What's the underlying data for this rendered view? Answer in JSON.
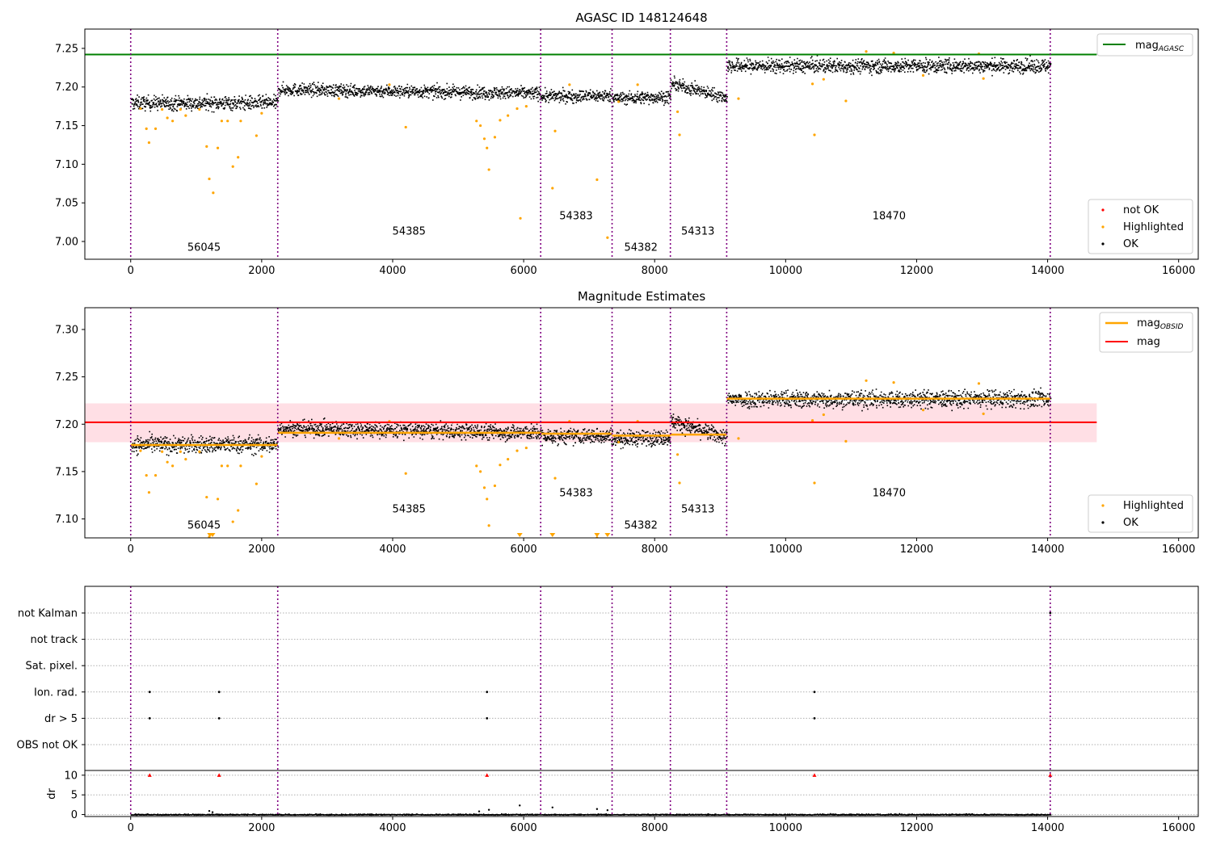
{
  "chart_data": [
    {
      "type": "scatter",
      "title": "AGASC ID 148124648",
      "xlim": [
        -700,
        16300
      ],
      "ylim": [
        6.977,
        7.275
      ],
      "xticks": [
        0,
        2000,
        4000,
        6000,
        8000,
        10000,
        12000,
        14000,
        16000
      ],
      "yticks": [
        7.0,
        7.05,
        7.1,
        7.15,
        7.2,
        7.25
      ],
      "ytick_labels": [
        "7.00",
        "7.05",
        "7.10",
        "7.15",
        "7.20",
        "7.25"
      ],
      "obsid_boundaries": [
        0,
        2245,
        6260,
        7350,
        8240,
        9100,
        14040
      ],
      "obsid_labels": [
        {
          "text": "56045",
          "x": 1120,
          "y": 6.988
        },
        {
          "text": "54385",
          "x": 4250,
          "y": 7.009
        },
        {
          "text": "54383",
          "x": 6800,
          "y": 7.029
        },
        {
          "text": "54382",
          "x": 7790,
          "y": 6.988
        },
        {
          "text": "54313",
          "x": 8660,
          "y": 7.009
        },
        {
          "text": "18470",
          "x": 11580,
          "y": 7.029
        }
      ],
      "agasc_line": {
        "name": "mag_AGASC",
        "value": 7.242,
        "x_range": [
          -700,
          14750
        ]
      },
      "ok_segments": [
        {
          "x": [
            0,
            2245
          ],
          "mean": 7.18,
          "slope": 0.0,
          "spread": 0.0045
        },
        {
          "x": [
            2245,
            6260
          ],
          "mean": 7.195,
          "slope": -0.005,
          "spread": 0.004
        },
        {
          "x": [
            6260,
            7350
          ],
          "mean": 7.189,
          "slope": 0.001,
          "spread": 0.004
        },
        {
          "x": [
            7350,
            8240
          ],
          "mean": 7.187,
          "slope": 0.002,
          "spread": 0.004
        },
        {
          "x": [
            8240,
            9100
          ],
          "mean": 7.196,
          "slope": -0.018,
          "spread": 0.004
        },
        {
          "x": [
            9100,
            14040
          ],
          "mean": 7.228,
          "slope": 0.0,
          "spread": 0.0045
        }
      ],
      "highlighted_points": {
        "x": [
          150,
          240,
          280,
          380,
          480,
          560,
          640,
          760,
          840,
          1050,
          1160,
          1200,
          1260,
          1330,
          1390,
          1480,
          1560,
          1640,
          1680,
          1920,
          2000,
          3180,
          3950,
          4200,
          5280,
          5340,
          5400,
          5440,
          5470,
          5560,
          5640,
          5760,
          5900,
          5950,
          6040,
          6440,
          6480,
          6700,
          7120,
          7280,
          7450,
          7740,
          8350,
          8380,
          9280,
          10410,
          10440,
          10580,
          10920,
          11230,
          11650,
          12100,
          12950,
          13020
        ],
        "y": [
          7.172,
          7.146,
          7.128,
          7.146,
          7.171,
          7.16,
          7.156,
          7.171,
          7.163,
          7.171,
          7.123,
          7.081,
          7.063,
          7.121,
          7.156,
          7.156,
          7.097,
          7.109,
          7.156,
          7.137,
          7.166,
          7.185,
          7.203,
          7.148,
          7.156,
          7.15,
          7.133,
          7.121,
          7.093,
          7.135,
          7.157,
          7.163,
          7.172,
          7.03,
          7.175,
          7.069,
          7.143,
          7.203,
          7.08,
          7.005,
          7.181,
          7.203,
          7.168,
          7.138,
          7.185,
          7.204,
          7.138,
          7.21,
          7.182,
          7.246,
          7.244,
          7.215,
          7.243,
          7.211
        ]
      },
      "legend_top": {
        "location": "upper right",
        "entries": [
          "mag_AGASC"
        ]
      },
      "legend_bottom": {
        "location": "lower right",
        "entries": [
          "not OK",
          "Highlighted",
          "OK"
        ]
      }
    },
    {
      "type": "scatter",
      "title": "Magnitude Estimates",
      "xlim": [
        -700,
        16300
      ],
      "ylim": [
        7.08,
        7.323
      ],
      "xticks": [
        0,
        2000,
        4000,
        6000,
        8000,
        10000,
        12000,
        14000,
        16000
      ],
      "yticks": [
        7.1,
        7.15,
        7.2,
        7.25,
        7.3
      ],
      "ytick_labels": [
        "7.10",
        "7.15",
        "7.20",
        "7.25",
        "7.30"
      ],
      "obsid_boundaries": [
        0,
        2245,
        6260,
        7350,
        8240,
        9100,
        14040
      ],
      "obsid_labels": [
        {
          "text": "56045",
          "x": 1120,
          "y": 7.09
        },
        {
          "text": "54385",
          "x": 4250,
          "y": 7.107
        },
        {
          "text": "54383",
          "x": 6800,
          "y": 7.124
        },
        {
          "text": "54382",
          "x": 7790,
          "y": 7.09
        },
        {
          "text": "54313",
          "x": 8660,
          "y": 7.107
        },
        {
          "text": "18470",
          "x": 11580,
          "y": 7.124
        }
      ],
      "mag_line": {
        "name": "mag",
        "value": 7.202,
        "band": [
          7.181,
          7.222
        ],
        "x_range": [
          -700,
          14750
        ]
      },
      "obsid_mag_levels": [
        {
          "x": [
            0,
            2245
          ],
          "mag": 7.178
        },
        {
          "x": [
            2245,
            6260
          ],
          "mag": 7.191
        },
        {
          "x": [
            6260,
            7350
          ],
          "mag": 7.19
        },
        {
          "x": [
            7350,
            8240
          ],
          "mag": 7.188
        },
        {
          "x": [
            8240,
            9100
          ],
          "mag": 7.189
        },
        {
          "x": [
            9100,
            14040
          ],
          "mag": 7.227
        }
      ],
      "out_of_range_markers_x": [
        1210,
        1250,
        5940,
        6440,
        7120,
        7280
      ],
      "legend_top": {
        "location": "upper right",
        "entries": [
          "mag_OBSID",
          "mag"
        ]
      },
      "legend_bottom": {
        "location": "lower right",
        "entries": [
          "Highlighted",
          "OK"
        ]
      }
    },
    {
      "type": "scatter",
      "title": "",
      "xlim": [
        -700,
        16300
      ],
      "flag_rows": [
        "not Kalman",
        "not track",
        "Sat. pixel.",
        "Ion. rad.",
        "dr > 5",
        "OBS not OK"
      ],
      "flag_points": {
        "not Kalman": [
          14040
        ],
        "not track": [],
        "Sat. pixel.": [],
        "Ion. rad.": [
          290,
          1350,
          5440,
          10440
        ],
        "dr > 5": [
          290,
          1350,
          5440,
          10440
        ],
        "OBS not OK": []
      },
      "dr_axis": {
        "label": "dr",
        "ylim": [
          -0.5,
          11.2
        ],
        "yticks": [
          0,
          5,
          10
        ],
        "ytick_labels": [
          "0",
          "5",
          "10"
        ]
      },
      "dr_clipped_x": [
        290,
        1350,
        5440,
        10440,
        14040
      ],
      "dr_spikes": [
        {
          "x": 1200,
          "y": 0.9
        },
        {
          "x": 1250,
          "y": 0.6
        },
        {
          "x": 5320,
          "y": 0.8
        },
        {
          "x": 5470,
          "y": 1.2
        },
        {
          "x": 5940,
          "y": 2.3
        },
        {
          "x": 6440,
          "y": 1.8
        },
        {
          "x": 7120,
          "y": 1.4
        },
        {
          "x": 7280,
          "y": 1.1
        }
      ]
    }
  ],
  "legend_labels": {
    "mag_agasc": {
      "base": "mag",
      "sub": "AGASC"
    },
    "mag_obsid": {
      "base": "mag",
      "sub": "OBSID"
    },
    "mag": "mag",
    "not_ok": "not OK",
    "highlighted": "Highlighted",
    "ok": "OK"
  },
  "colors": {
    "ok": "#000000",
    "highlighted": "#ffa500",
    "not_ok": "#ff0000",
    "agasc_line": "#008000",
    "mag_line": "#ff0000",
    "mag_band": "#ffc0cb",
    "obsid_line": "#ffa500",
    "obsid_boundary": "#800080",
    "grid": "#b0b0b0"
  }
}
